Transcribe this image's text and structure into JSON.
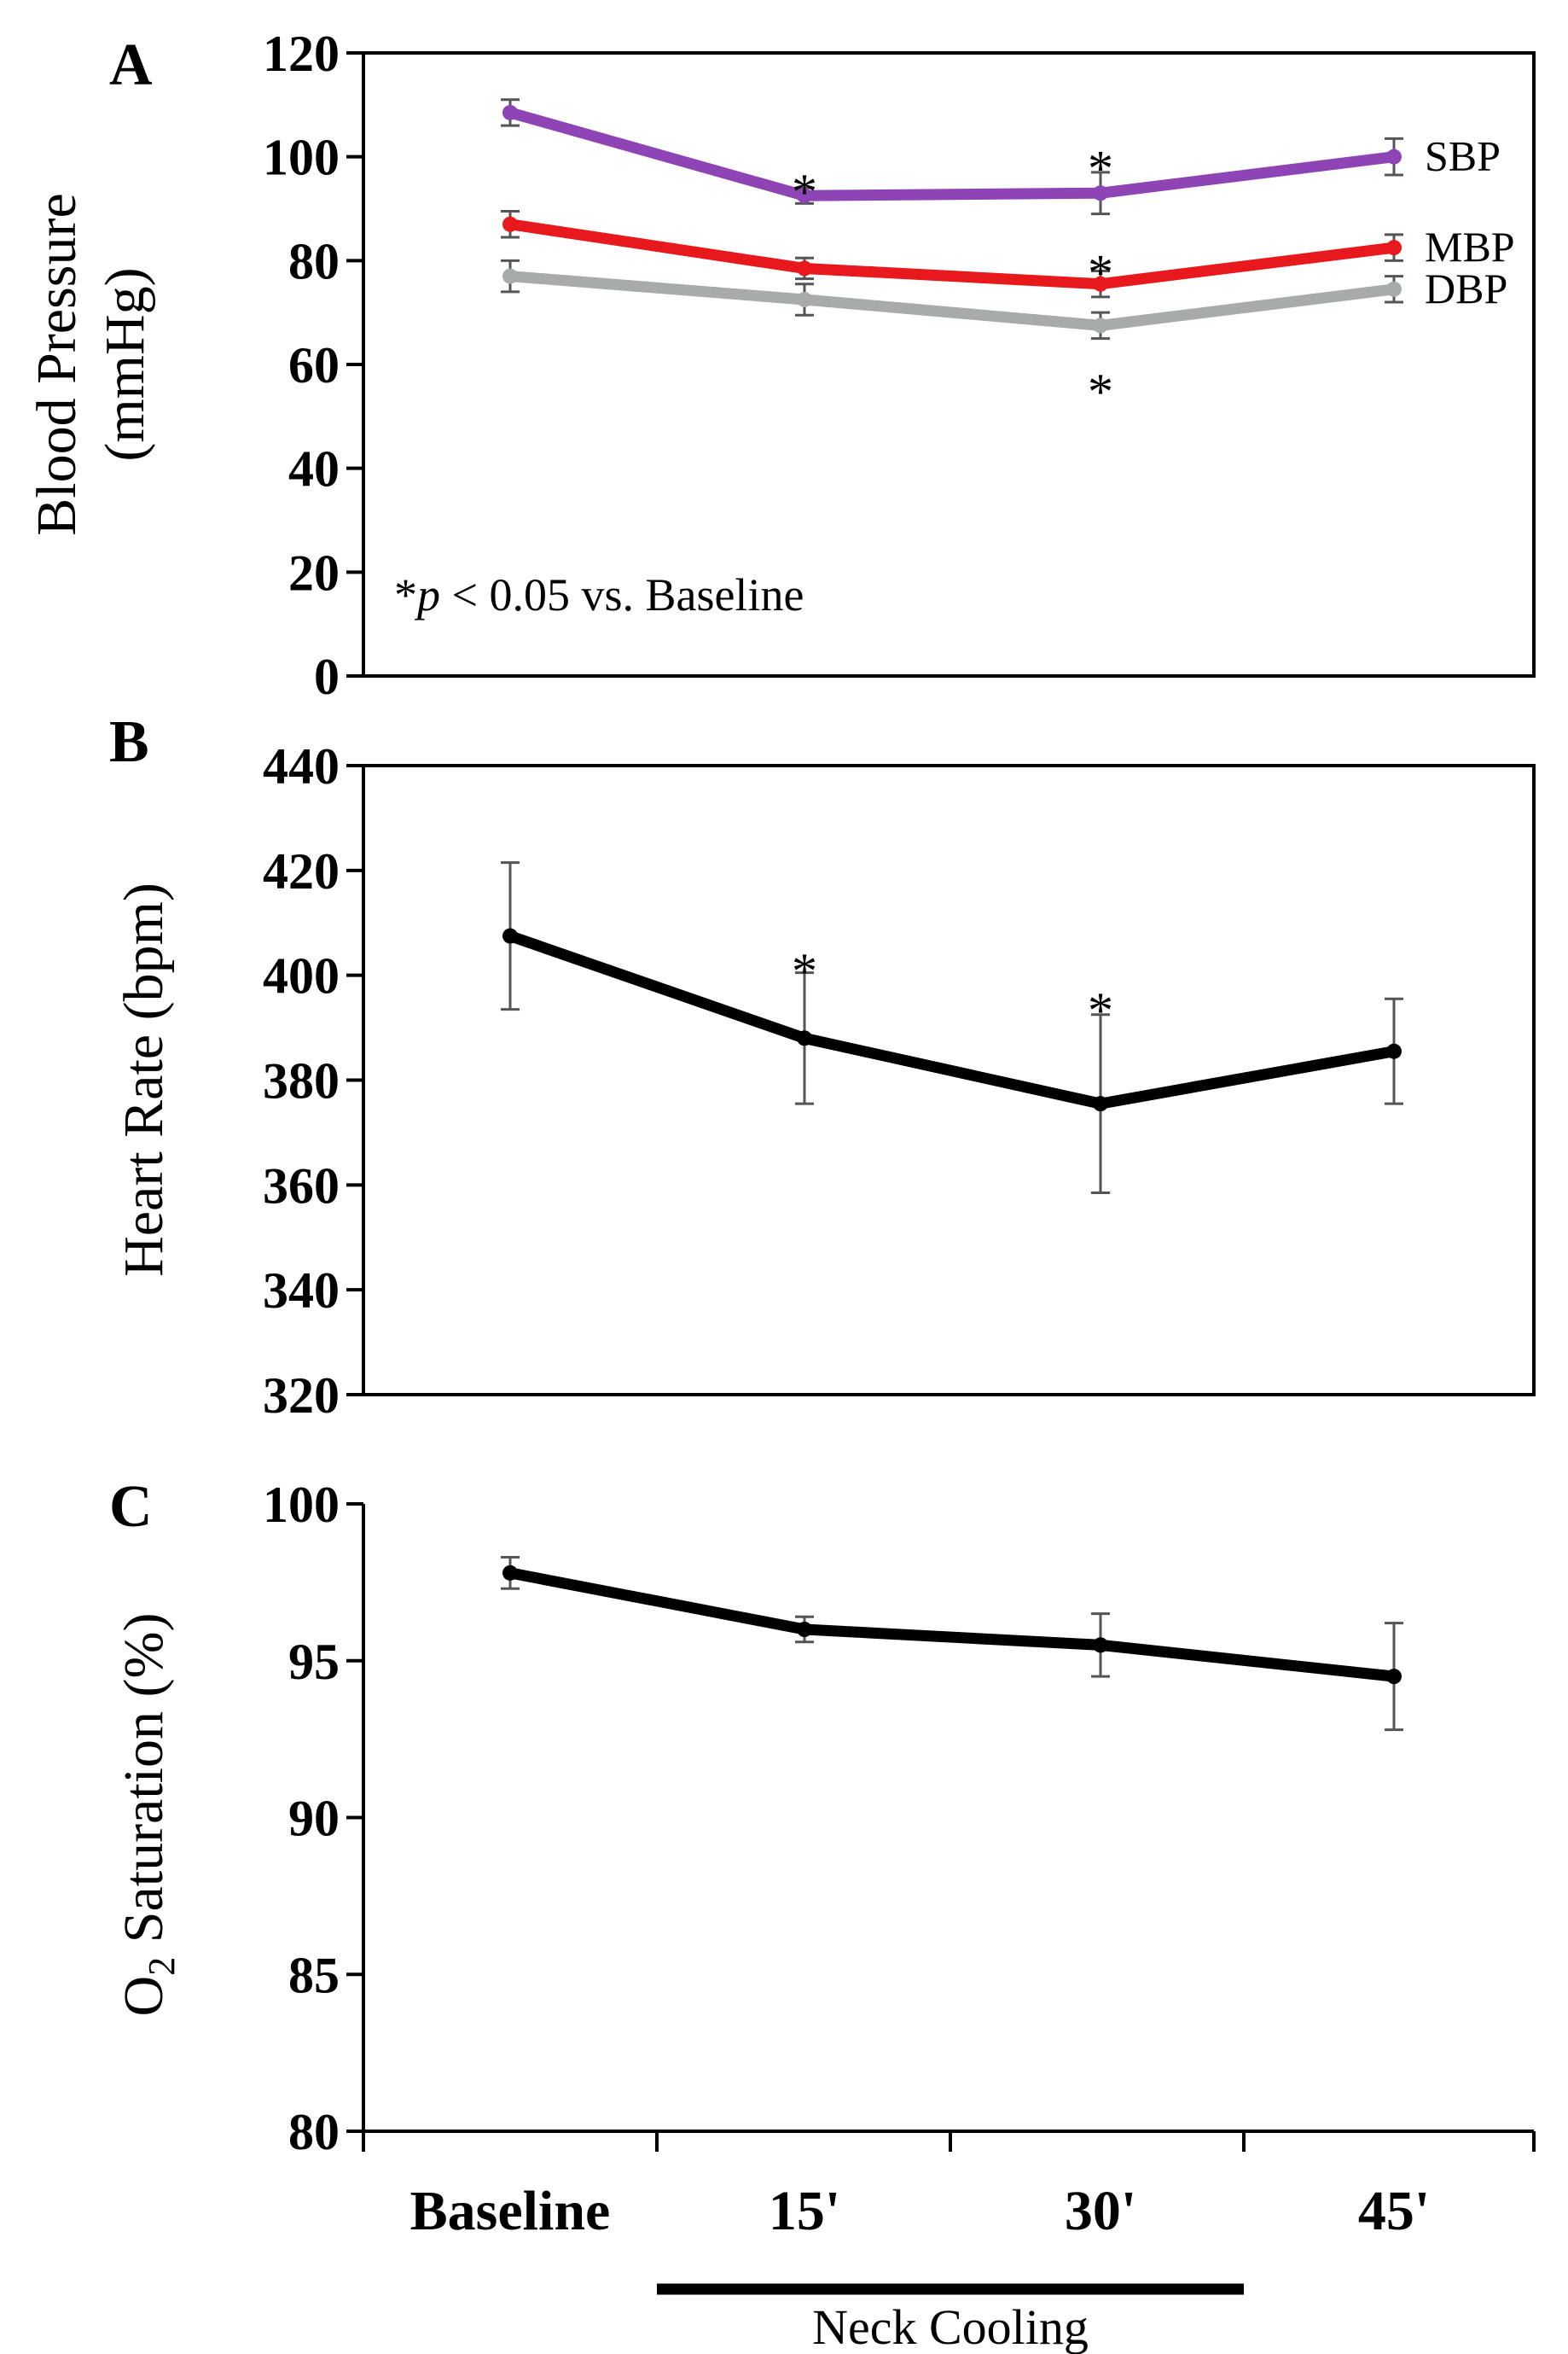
{
  "chart_data": [
    {
      "type": "line",
      "panel_label": "A",
      "ylabel_lines": [
        "Blood Pressure",
        "(mmHg)"
      ],
      "ylim": [
        0,
        120
      ],
      "yticks": [
        0,
        20,
        40,
        60,
        80,
        100,
        120
      ],
      "categories": [
        "Baseline",
        "15'",
        "30'",
        "45'"
      ],
      "series": [
        {
          "name": "SBP",
          "color": "#8e44b5",
          "values": [
            108.5,
            92.5,
            93.0,
            100.0
          ],
          "errors": [
            2.5,
            1.5,
            4.0,
            3.5
          ]
        },
        {
          "name": "MBP",
          "color": "#e8191c",
          "values": [
            87.0,
            78.5,
            75.5,
            82.5
          ],
          "errors": [
            2.5,
            2.0,
            2.5,
            2.5
          ]
        },
        {
          "name": "DBP",
          "color": "#a8aca8",
          "values": [
            77.0,
            72.5,
            67.5,
            74.5
          ],
          "errors": [
            3.0,
            3.0,
            2.5,
            2.5
          ]
        }
      ],
      "significance": [
        {
          "category": 1,
          "y": 96.5,
          "text": "*"
        },
        {
          "category": 2,
          "y": 101.0,
          "text": "*"
        },
        {
          "category": 2,
          "y": 81.0,
          "text": "*"
        },
        {
          "category": 2,
          "y": 58.0,
          "text": "*"
        }
      ],
      "note": {
        "prefix": "*",
        "italic": "p",
        "suffix": " < 0.05 vs. Baseline"
      }
    },
    {
      "type": "line",
      "panel_label": "B",
      "ylabel_lines": [
        "Heart Rate (bpm)"
      ],
      "ylim": [
        320,
        440
      ],
      "yticks": [
        320,
        340,
        360,
        380,
        400,
        420,
        440
      ],
      "categories": [
        "Baseline",
        "15'",
        "30'",
        "45'"
      ],
      "series": [
        {
          "name": "Heart Rate",
          "color": "#000000",
          "values": [
            407.5,
            388.0,
            375.5,
            385.5
          ],
          "errors": [
            14.0,
            12.5,
            17.0,
            10.0
          ]
        }
      ],
      "significance": [
        {
          "category": 1,
          "y": 404.0,
          "text": "*"
        },
        {
          "category": 2,
          "y": 396.5,
          "text": "*"
        }
      ]
    },
    {
      "type": "line",
      "panel_label": "C",
      "ylabel": {
        "base": "O",
        "sub": "2",
        "rest": " Saturation (%)"
      },
      "ylim": [
        80,
        100
      ],
      "yticks": [
        80,
        85,
        90,
        95,
        100
      ],
      "categories": [
        "Baseline",
        "15'",
        "30'",
        "45'"
      ],
      "series": [
        {
          "name": "O2 Saturation",
          "color": "#000000",
          "values": [
            97.8,
            96.0,
            95.5,
            94.5
          ],
          "errors": [
            0.5,
            0.4,
            1.0,
            1.7
          ]
        }
      ],
      "xtick_labels": [
        "Baseline",
        "15'",
        "30'",
        "45'"
      ],
      "bracket_label": "Neck Cooling",
      "bracket_span": [
        1,
        2
      ]
    }
  ]
}
